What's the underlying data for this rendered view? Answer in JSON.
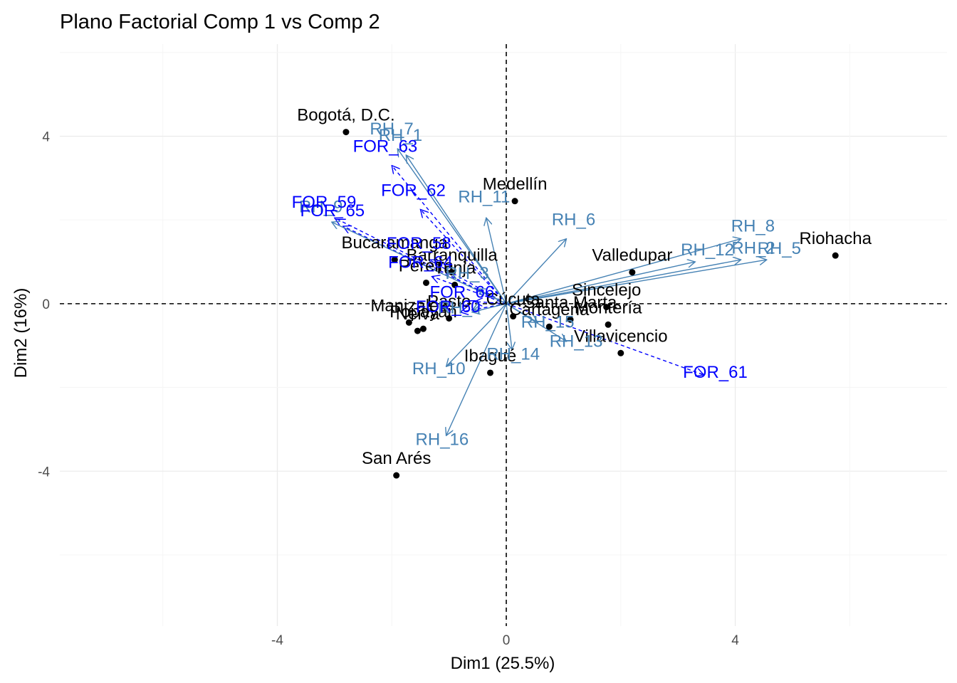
{
  "chart_data": {
    "type": "scatter",
    "title": "Plano Factorial Comp 1 vs Comp 2",
    "xlabel": "Dim1 (25.5%)",
    "ylabel": "Dim2 (16%)",
    "xlim": [
      -7.8,
      7.7
    ],
    "ylim": [
      -7.7,
      6.2
    ],
    "x_ticks": [
      -4,
      0,
      4
    ],
    "y_ticks": [
      -4,
      0,
      4
    ],
    "grid": true,
    "reference_lines": {
      "x": 0,
      "y": 0,
      "style": "dashed"
    },
    "colors": {
      "points": "#000000",
      "supplementary_vectors": "#0000ff",
      "active_vectors": "#4682b4",
      "grid_major": "#ebebeb",
      "grid_minor": "#f5f5f5"
    },
    "individuals": [
      {
        "label": "Bogotá, D.C.",
        "x": -2.8,
        "y": 4.1
      },
      {
        "label": "Medellín",
        "x": 0.15,
        "y": 2.45
      },
      {
        "label": "Barranquilla",
        "x": -0.95,
        "y": 0.75
      },
      {
        "label": "Bucaramanga",
        "x": -1.95,
        "y": 1.05
      },
      {
        "label": "Tunja",
        "x": -0.9,
        "y": 0.45
      },
      {
        "label": "Pereira",
        "x": -1.4,
        "y": 0.5
      },
      {
        "label": "Manizales",
        "x": -1.7,
        "y": -0.45
      },
      {
        "label": "Popayán",
        "x": -1.45,
        "y": -0.6
      },
      {
        "label": "Neiva",
        "x": -1.55,
        "y": -0.65
      },
      {
        "label": "Pasto",
        "x": -1.0,
        "y": -0.35
      },
      {
        "label": "Ibagué",
        "x": -0.28,
        "y": -1.65
      },
      {
        "label": "San Arés",
        "x": -1.92,
        "y": -4.1
      },
      {
        "label": "Cúcuta",
        "x": 0.12,
        "y": -0.3
      },
      {
        "label": "Cartagena",
        "x": 0.75,
        "y": -0.55
      },
      {
        "label": "Santa Marta",
        "x": 1.12,
        "y": -0.38
      },
      {
        "label": "Sincelejo",
        "x": 1.75,
        "y": -0.08
      },
      {
        "label": "Villavicencio",
        "x": 2.0,
        "y": -1.18
      },
      {
        "label": "Valledupar",
        "x": 2.2,
        "y": 0.75
      },
      {
        "label": "Montería",
        "x": 1.78,
        "y": -0.5
      },
      {
        "label": "Riohacha",
        "x": 5.75,
        "y": 1.15
      }
    ],
    "active_vectors": [
      {
        "label": "RH_7",
        "x": -1.9,
        "y": 3.7
      },
      {
        "label": "RH_1",
        "x": -1.75,
        "y": 3.55
      },
      {
        "label": "RH_9",
        "x": -3.05,
        "y": 1.95
      },
      {
        "label": "RH_11",
        "x": -0.35,
        "y": 2.05
      },
      {
        "label": "RH_6",
        "x": 1.05,
        "y": 1.55
      },
      {
        "label": "RH_8",
        "x": 4.1,
        "y": 1.55
      },
      {
        "label": "RH_12",
        "x": 3.3,
        "y": 1.0
      },
      {
        "label": "RH_2",
        "x": 4.1,
        "y": 1.05
      },
      {
        "label": "RH_5",
        "x": 4.55,
        "y": 1.05
      },
      {
        "label": "RH_3",
        "x": -0.5,
        "y": 0.35
      },
      {
        "label": "RH_4",
        "x": -0.6,
        "y": -0.2
      },
      {
        "label": "RH_13",
        "x": 1.05,
        "y": -0.9
      },
      {
        "label": "RH_14",
        "x": 0.1,
        "y": -1.1
      },
      {
        "label": "RH_10",
        "x": -1.05,
        "y": -1.5
      },
      {
        "label": "RH_16",
        "x": -1.05,
        "y": -3.15
      },
      {
        "label": "RH_15",
        "x": 0.55,
        "y": -0.45
      }
    ],
    "supplementary_vectors": [
      {
        "label": "FOR_63",
        "x": -2.0,
        "y": 3.3
      },
      {
        "label": "FOR_62",
        "x": -1.5,
        "y": 2.25
      },
      {
        "label": "FOR_59",
        "x": -3.0,
        "y": 2.05
      },
      {
        "label": "FOR_65",
        "x": -2.85,
        "y": 1.85
      },
      {
        "label": "FOR_58",
        "x": -1.35,
        "y": 1.05
      },
      {
        "label": "FOR_64",
        "x": -1.3,
        "y": 0.65
      },
      {
        "label": "FOR_60",
        "x": -0.8,
        "y": -0.2
      },
      {
        "label": "FOR_66",
        "x": -0.55,
        "y": 0.05
      },
      {
        "label": "FOR_61",
        "x": 3.45,
        "y": -1.7
      }
    ]
  }
}
